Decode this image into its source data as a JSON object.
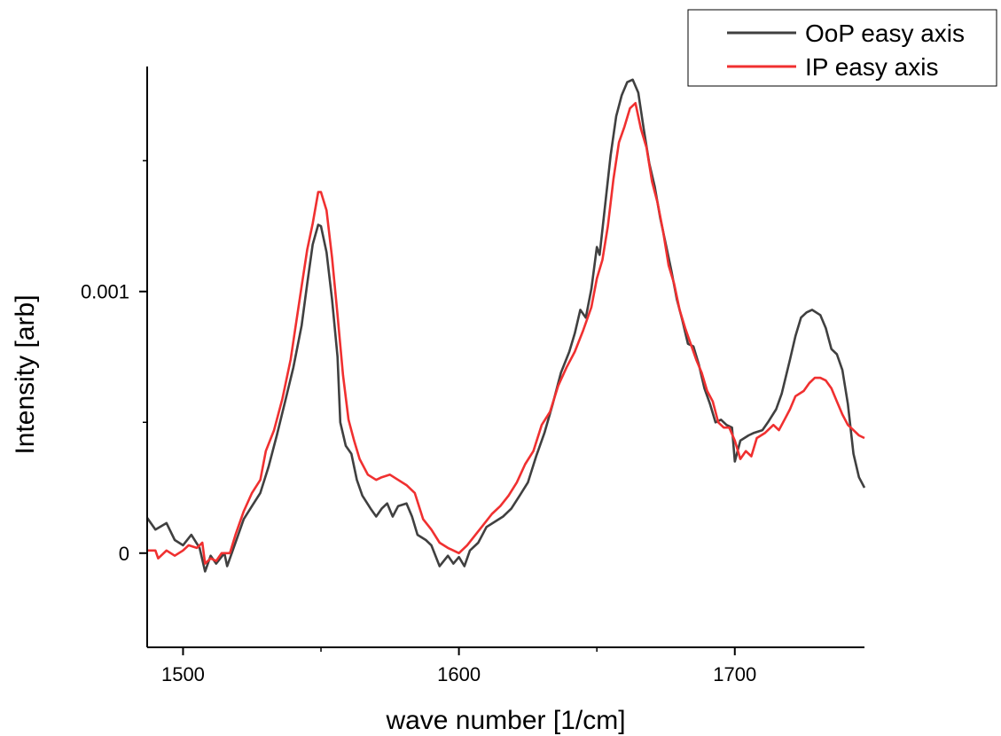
{
  "chart_data": {
    "type": "line",
    "title": "",
    "xlabel": "wave number [1/cm]",
    "ylabel": "Intensity [arb]",
    "xlim": [
      1487,
      1747
    ],
    "ylim": [
      -0.00036,
      0.00186
    ],
    "x_ticks": [
      1500,
      1600,
      1700
    ],
    "x_tick_labels": [
      "1500",
      "1600",
      "1700"
    ],
    "y_ticks": [
      0,
      0.001
    ],
    "y_tick_labels": [
      "0",
      "0.001"
    ],
    "grid": false,
    "legend": {
      "position": "top-right",
      "entries": [
        "OoP easy axis",
        "IP easy axis"
      ]
    },
    "series": [
      {
        "name": "OoP easy axis",
        "color": "#404040",
        "points": [
          [
            1487,
            0.000135
          ],
          [
            1490,
            9e-05
          ],
          [
            1494,
            0.000115
          ],
          [
            1497,
            5e-05
          ],
          [
            1500,
            3e-05
          ],
          [
            1503,
            7e-05
          ],
          [
            1506,
            2e-05
          ],
          [
            1508,
            -7e-05
          ],
          [
            1510,
            -1e-05
          ],
          [
            1512,
            -4e-05
          ],
          [
            1515,
            -0.0
          ],
          [
            1516,
            -5e-05
          ],
          [
            1519,
            4e-05
          ],
          [
            1522,
            0.00013
          ],
          [
            1525,
            0.00018
          ],
          [
            1528,
            0.00023
          ],
          [
            1531,
            0.00033
          ],
          [
            1534,
            0.00045
          ],
          [
            1537,
            0.00058
          ],
          [
            1540,
            0.00071
          ],
          [
            1543,
            0.00087
          ],
          [
            1545,
            0.00103
          ],
          [
            1547,
            0.00118
          ],
          [
            1549,
            0.001255
          ],
          [
            1550,
            0.00125
          ],
          [
            1552,
            0.00115
          ],
          [
            1554,
            0.00097
          ],
          [
            1556,
            0.00075
          ],
          [
            1557,
            0.0005
          ],
          [
            1559,
            0.00041
          ],
          [
            1561,
            0.00038
          ],
          [
            1563,
            0.00028
          ],
          [
            1565,
            0.00022
          ],
          [
            1568,
            0.00017
          ],
          [
            1570,
            0.00014
          ],
          [
            1572,
            0.00017
          ],
          [
            1574,
            0.00019
          ],
          [
            1576,
            0.00014
          ],
          [
            1578,
            0.00018
          ],
          [
            1581,
            0.00019
          ],
          [
            1583,
            0.00014
          ],
          [
            1585,
            7e-05
          ],
          [
            1588,
            5e-05
          ],
          [
            1590,
            3e-05
          ],
          [
            1593,
            -5e-05
          ],
          [
            1596,
            -1e-05
          ],
          [
            1598,
            -4e-05
          ],
          [
            1600,
            -1.5e-05
          ],
          [
            1602,
            -5e-05
          ],
          [
            1604,
            1e-05
          ],
          [
            1607,
            4e-05
          ],
          [
            1610,
            0.0001
          ],
          [
            1613,
            0.00012
          ],
          [
            1616,
            0.00014
          ],
          [
            1619,
            0.00017
          ],
          [
            1622,
            0.00022
          ],
          [
            1625,
            0.00027
          ],
          [
            1628,
            0.00037
          ],
          [
            1631,
            0.00046
          ],
          [
            1634,
            0.00057
          ],
          [
            1637,
            0.00069
          ],
          [
            1640,
            0.00077
          ],
          [
            1642,
            0.00084
          ],
          [
            1644,
            0.00093
          ],
          [
            1646,
            0.0009
          ],
          [
            1648,
            0.00101
          ],
          [
            1650,
            0.00117
          ],
          [
            1651,
            0.00114
          ],
          [
            1653,
            0.00133
          ],
          [
            1655,
            0.00152
          ],
          [
            1657,
            0.00167
          ],
          [
            1659,
            0.00175
          ],
          [
            1661,
            0.0018
          ],
          [
            1663,
            0.00181
          ],
          [
            1665,
            0.00176
          ],
          [
            1667,
            0.00162
          ],
          [
            1669,
            0.00149
          ],
          [
            1671,
            0.0014
          ],
          [
            1673,
            0.00128
          ],
          [
            1675,
            0.00118
          ],
          [
            1677,
            0.00108
          ],
          [
            1679,
            0.00097
          ],
          [
            1681,
            0.00089
          ],
          [
            1683,
            0.0008
          ],
          [
            1685,
            0.00079
          ],
          [
            1687,
            0.00072
          ],
          [
            1689,
            0.00063
          ],
          [
            1691,
            0.00057
          ],
          [
            1693,
            0.0005
          ],
          [
            1695,
            0.00051
          ],
          [
            1697,
            0.00049
          ],
          [
            1699,
            0.00048
          ],
          [
            1700,
            0.00035
          ],
          [
            1702,
            0.00043
          ],
          [
            1705,
            0.00045
          ],
          [
            1707,
            0.00046
          ],
          [
            1710,
            0.00047
          ],
          [
            1712,
            0.0005
          ],
          [
            1715,
            0.00055
          ],
          [
            1717,
            0.00061
          ],
          [
            1720,
            0.00074
          ],
          [
            1722,
            0.00083
          ],
          [
            1724,
            0.0009
          ],
          [
            1726,
            0.00092
          ],
          [
            1728,
            0.00093
          ],
          [
            1731,
            0.00091
          ],
          [
            1733,
            0.00086
          ],
          [
            1735,
            0.00078
          ],
          [
            1737,
            0.00076
          ],
          [
            1739,
            0.0007
          ],
          [
            1741,
            0.00057
          ],
          [
            1743,
            0.00038
          ],
          [
            1745,
            0.00029
          ],
          [
            1747,
            0.00025
          ]
        ]
      },
      {
        "name": "IP easy axis",
        "color": "#f03030",
        "points": [
          [
            1487,
            1e-05
          ],
          [
            1490,
            1e-05
          ],
          [
            1491,
            -2e-05
          ],
          [
            1494,
            1e-05
          ],
          [
            1497,
            -1e-05
          ],
          [
            1500,
            1e-05
          ],
          [
            1502,
            3e-05
          ],
          [
            1505,
            2e-05
          ],
          [
            1507,
            4e-05
          ],
          [
            1508,
            -4e-05
          ],
          [
            1510,
            -2e-05
          ],
          [
            1512,
            -3e-05
          ],
          [
            1514,
            0.0
          ],
          [
            1517,
            0.0
          ],
          [
            1519,
            7e-05
          ],
          [
            1522,
            0.00016
          ],
          [
            1525,
            0.00023
          ],
          [
            1528,
            0.00028
          ],
          [
            1530,
            0.00039
          ],
          [
            1533,
            0.00047
          ],
          [
            1536,
            0.00059
          ],
          [
            1539,
            0.00074
          ],
          [
            1541,
            0.00088
          ],
          [
            1543,
            0.00102
          ],
          [
            1545,
            0.00116
          ],
          [
            1547,
            0.00126
          ],
          [
            1549,
            0.00138
          ],
          [
            1550,
            0.00138
          ],
          [
            1552,
            0.00131
          ],
          [
            1554,
            0.00113
          ],
          [
            1556,
            0.00091
          ],
          [
            1558,
            0.00068
          ],
          [
            1560,
            0.00051
          ],
          [
            1562,
            0.00043
          ],
          [
            1564,
            0.00036
          ],
          [
            1567,
            0.0003
          ],
          [
            1570,
            0.00028
          ],
          [
            1572,
            0.00029
          ],
          [
            1575,
            0.0003
          ],
          [
            1578,
            0.00028
          ],
          [
            1581,
            0.00026
          ],
          [
            1584,
            0.00023
          ],
          [
            1587,
            0.00013
          ],
          [
            1590,
            9e-05
          ],
          [
            1593,
            4e-05
          ],
          [
            1596,
            2e-05
          ],
          [
            1598,
            1e-05
          ],
          [
            1600,
            0.0
          ],
          [
            1603,
            3e-05
          ],
          [
            1606,
            7e-05
          ],
          [
            1609,
            0.00011
          ],
          [
            1612,
            0.00015
          ],
          [
            1615,
            0.00018
          ],
          [
            1618,
            0.00022
          ],
          [
            1621,
            0.00027
          ],
          [
            1624,
            0.00034
          ],
          [
            1627,
            0.00039
          ],
          [
            1630,
            0.00049
          ],
          [
            1633,
            0.00054
          ],
          [
            1636,
            0.00064
          ],
          [
            1639,
            0.00071
          ],
          [
            1642,
            0.00077
          ],
          [
            1645,
            0.00085
          ],
          [
            1648,
            0.00094
          ],
          [
            1650,
            0.00105
          ],
          [
            1652,
            0.00112
          ],
          [
            1654,
            0.00125
          ],
          [
            1656,
            0.00143
          ],
          [
            1658,
            0.00157
          ],
          [
            1660,
            0.00163
          ],
          [
            1662,
            0.0017
          ],
          [
            1664,
            0.00172
          ],
          [
            1666,
            0.00162
          ],
          [
            1668,
            0.00155
          ],
          [
            1670,
            0.00142
          ],
          [
            1672,
            0.00134
          ],
          [
            1674,
            0.00123
          ],
          [
            1676,
            0.0011
          ],
          [
            1678,
            0.00103
          ],
          [
            1680,
            0.00093
          ],
          [
            1682,
            0.00086
          ],
          [
            1684,
            0.0008
          ],
          [
            1686,
            0.00074
          ],
          [
            1688,
            0.00069
          ],
          [
            1690,
            0.00062
          ],
          [
            1692,
            0.00058
          ],
          [
            1694,
            0.0005
          ],
          [
            1696,
            0.00048
          ],
          [
            1698,
            0.00048
          ],
          [
            1700,
            0.00043
          ],
          [
            1702,
            0.00036
          ],
          [
            1704,
            0.00039
          ],
          [
            1706,
            0.00037
          ],
          [
            1708,
            0.00044
          ],
          [
            1711,
            0.00046
          ],
          [
            1714,
            0.00049
          ],
          [
            1716,
            0.00047
          ],
          [
            1718,
            0.00051
          ],
          [
            1720,
            0.00055
          ],
          [
            1722,
            0.0006
          ],
          [
            1725,
            0.00062
          ],
          [
            1727,
            0.00065
          ],
          [
            1729,
            0.00067
          ],
          [
            1731,
            0.00067
          ],
          [
            1733,
            0.00066
          ],
          [
            1735,
            0.00063
          ],
          [
            1737,
            0.00058
          ],
          [
            1739,
            0.00053
          ],
          [
            1741,
            0.00049
          ],
          [
            1743,
            0.00047
          ],
          [
            1745,
            0.00045
          ],
          [
            1747,
            0.00044
          ]
        ]
      }
    ]
  }
}
